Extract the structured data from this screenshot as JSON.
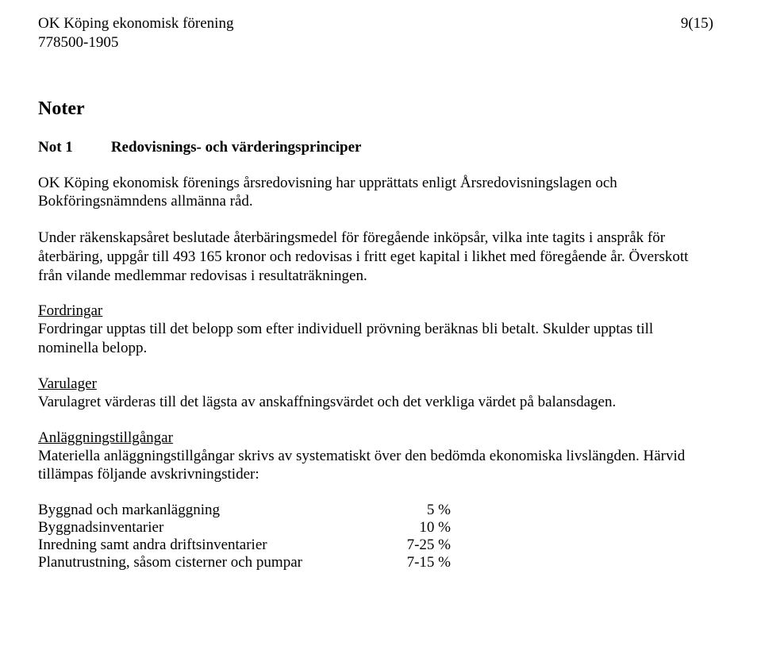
{
  "header": {
    "org_name": "OK Köping ekonomisk förening",
    "org_number": "778500-1905",
    "page_number": "9(15)"
  },
  "section_title": "Noter",
  "note": {
    "label": "Not 1",
    "heading": "Redovisnings- och värderingsprinciper"
  },
  "paragraphs": {
    "p1": "OK Köping ekonomisk förenings årsredovisning har upprättats enligt Årsredovisningslagen och Bokföringsnämndens allmänna råd.",
    "p2": "Under räkenskapsåret beslutade återbäringsmedel för föregående inköpsår, vilka inte tagits i anspråk för återbäring, uppgår till 493 165 kronor och redovisas i fritt eget kapital i likhet med föregående år. Överskott från vilande medlemmar redovisas i resultaträkningen."
  },
  "sections": {
    "fordringar": {
      "heading": "Fordringar",
      "text": "Fordringar upptas till det belopp som efter individuell prövning beräknas bli betalt. Skulder upptas till nominella belopp."
    },
    "varulager": {
      "heading": "Varulager",
      "text": "Varulagret värderas till det lägsta av anskaffningsvärdet och det verkliga värdet på balansdagen."
    },
    "anlaggning": {
      "heading": "Anläggningstillgångar",
      "text": "Materiella anläggningstillgångar skrivs av systematiskt över den bedömda ekonomiska livslängden. Härvid tillämpas följande avskrivningstider:"
    }
  },
  "depreciation": {
    "rows": [
      {
        "label": "Byggnad och markanläggning",
        "value": "5 %"
      },
      {
        "label": "Byggnadsinventarier",
        "value": "10 %"
      },
      {
        "label": "Inredning samt andra driftsinventarier",
        "value": "7-25 %"
      },
      {
        "label": "Planutrustning, såsom cisterner och pumpar",
        "value": "7-15 %"
      }
    ]
  }
}
